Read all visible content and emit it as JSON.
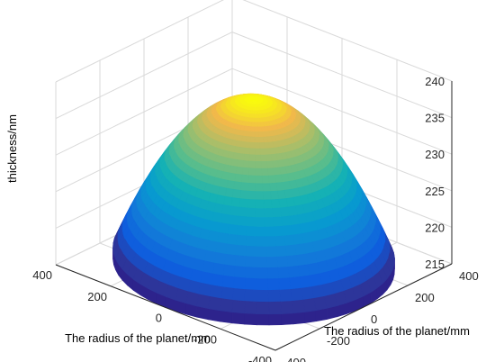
{
  "chart_data": {
    "type": "surface",
    "title": "",
    "xlabel": "The radius of the planet/mm",
    "ylabel": "The radius of the planet/mm",
    "zlabel": "thickness/nm",
    "x_ticks": [
      "-400",
      "-200",
      "0",
      "200",
      "400"
    ],
    "y_ticks": [
      "-400",
      "-200",
      "0",
      "200",
      "400"
    ],
    "z_ticks": [
      "215",
      "220",
      "225",
      "230",
      "235",
      "240"
    ],
    "xlim": [
      -400,
      400
    ],
    "ylim": [
      -400,
      400
    ],
    "zlim": [
      215,
      240
    ],
    "grid": true,
    "colormap": "parula",
    "surface": {
      "shape": "paraboloid over circular planet",
      "planet_radius_mm": 400,
      "thickness_center_nm": 237.5,
      "thickness_edge_nm": 216.5,
      "radial_samples": [
        {
          "r": 0,
          "z": 237.5
        },
        {
          "r": 100,
          "z": 236.2
        },
        {
          "r": 200,
          "z": 232.25
        },
        {
          "r": 300,
          "z": 225.7
        },
        {
          "r": 400,
          "z": 216.5
        }
      ]
    },
    "colors": {
      "parula_low": "#352a87",
      "parula_high": "#f9fb0e"
    }
  }
}
